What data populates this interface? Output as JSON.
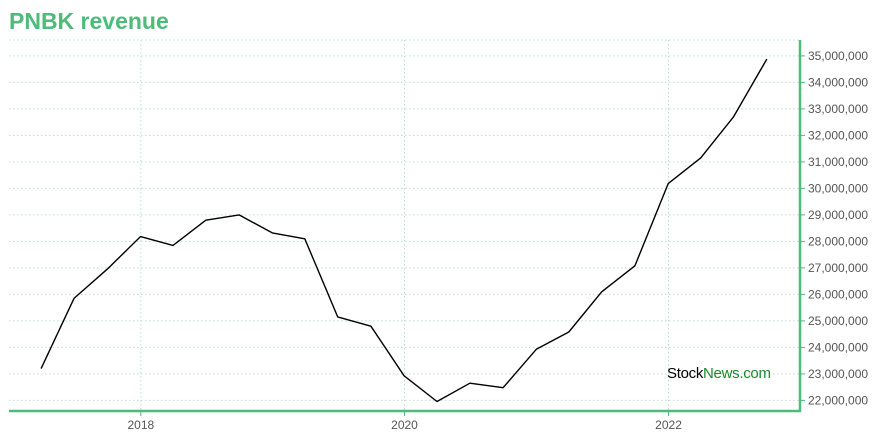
{
  "page_title": "PNBK revenue",
  "watermark": {
    "part1": "Stock",
    "part2": "News",
    "part3": ".com"
  },
  "colors": {
    "accent": "#4dbb7a",
    "line": "#000000",
    "grid": "#b9e0cc",
    "watermark_dark": "#000000",
    "watermark_green": "#1a8a2e"
  },
  "chart_data": {
    "type": "line",
    "title": "PNBK revenue",
    "xlabel": "",
    "ylabel": "",
    "x_ticks": [
      "2018",
      "2020",
      "2022"
    ],
    "xlim": [
      "2017-01-01",
      "2022-12-31"
    ],
    "ylim": [
      21600000,
      35600000
    ],
    "y_ticks": [
      "22,000,000",
      "23,000,000",
      "24,000,000",
      "25,000,000",
      "26,000,000",
      "27,000,000",
      "28,000,000",
      "29,000,000",
      "30,000,000",
      "31,000,000",
      "32,000,000",
      "33,000,000",
      "34,000,000",
      "35,000,000"
    ],
    "y_tick_values": [
      22000000,
      23000000,
      24000000,
      25000000,
      26000000,
      27000000,
      28000000,
      29000000,
      30000000,
      31000000,
      32000000,
      33000000,
      34000000,
      35000000
    ],
    "grid": true,
    "y_axis_side": "right",
    "series": [
      {
        "x": [
          "2017-03-31",
          "2017-06-30",
          "2017-09-30",
          "2017-12-31",
          "2018-03-31",
          "2018-06-30",
          "2018-09-30",
          "2018-12-31",
          "2019-03-31",
          "2019-06-30",
          "2019-09-30",
          "2019-12-31",
          "2020-03-31",
          "2020-06-30",
          "2020-09-30",
          "2020-12-31",
          "2021-03-31",
          "2021-06-30",
          "2021-09-30",
          "2021-12-31",
          "2022-03-31",
          "2022-06-30",
          "2022-09-30"
        ],
        "values": [
          23200000,
          25850000,
          26950000,
          28180000,
          27850000,
          28800000,
          29000000,
          28320000,
          28100000,
          25150000,
          24800000,
          22930000,
          21960000,
          22650000,
          22480000,
          23930000,
          24580000,
          26100000,
          27080000,
          30180000,
          31150000,
          32700000,
          34880000
        ]
      }
    ]
  }
}
